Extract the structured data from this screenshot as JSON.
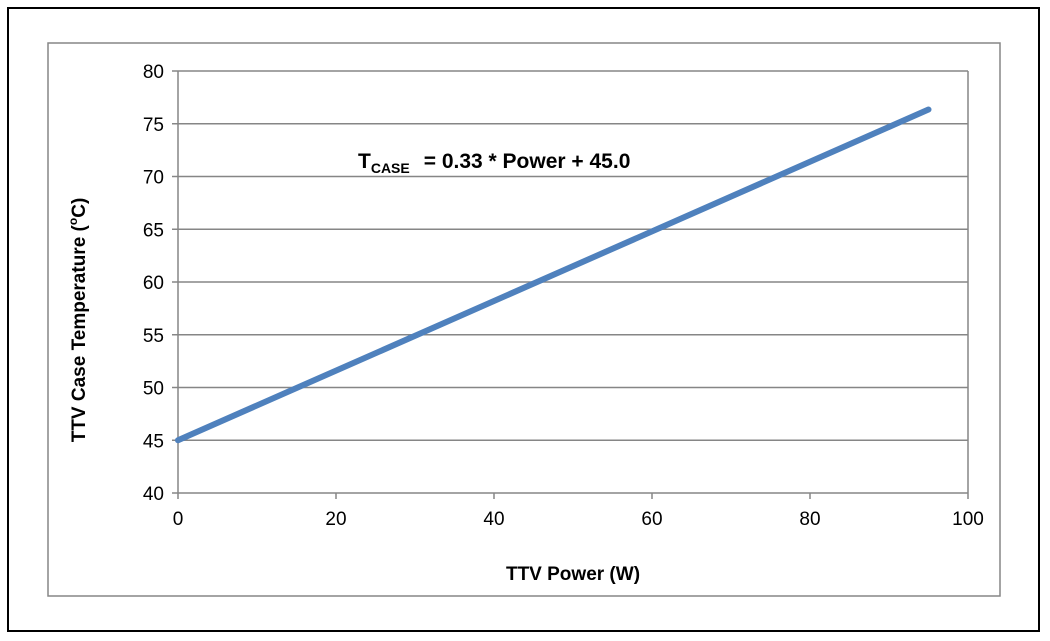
{
  "chart_data": {
    "type": "line",
    "xlabel": "TTV Power (W)",
    "ylabel": "TTV Case Temperature (°C)",
    "ylabel_parts": {
      "main": "TTV Case Temperature (",
      "sup": "o",
      "end": "C)"
    },
    "xlim": [
      0,
      100
    ],
    "ylim": [
      40,
      80
    ],
    "x_ticks": [
      0,
      20,
      40,
      60,
      80,
      100
    ],
    "y_ticks": [
      40,
      45,
      50,
      55,
      60,
      65,
      70,
      75,
      80
    ],
    "grid": "horizontal",
    "series": [
      {
        "color": "#4f81bd",
        "x": [
          0,
          95
        ],
        "y": [
          45.0,
          76.35
        ]
      }
    ],
    "annotation": {
      "text": "T_CASE = 0.33 * Power + 45.0",
      "symbol": "T",
      "subscript": "CASE",
      "equation": "= 0.33 * Power + 45.0"
    },
    "colors": {
      "line": "#4f81bd",
      "grid": "#868686",
      "frame": "#868686"
    }
  }
}
